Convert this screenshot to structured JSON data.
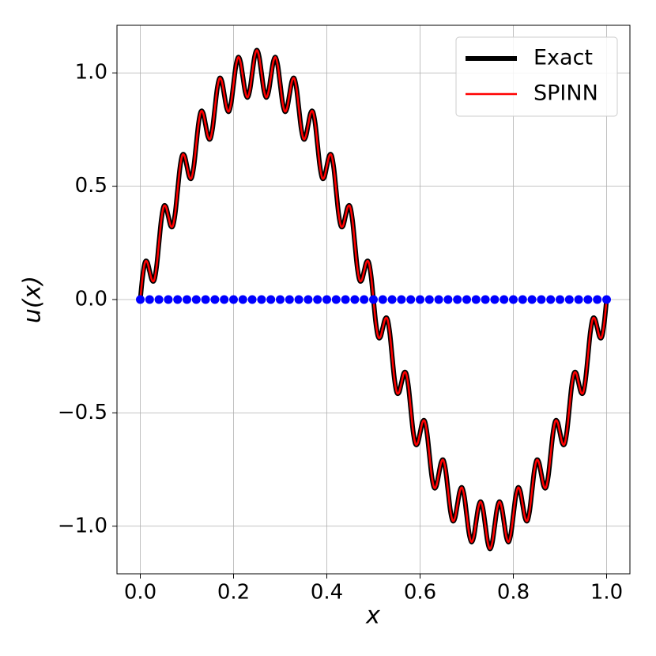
{
  "chart_data": {
    "type": "line",
    "xlabel": "x",
    "ylabel": "u(x)",
    "xlim": [
      -0.05,
      1.05
    ],
    "ylim": [
      -1.21,
      1.21
    ],
    "xticks": [
      {
        "value": 0,
        "label": "0.0"
      },
      {
        "value": 0.2,
        "label": "0.2"
      },
      {
        "value": 0.4,
        "label": "0.4"
      },
      {
        "value": 0.6,
        "label": "0.6"
      },
      {
        "value": 0.8,
        "label": "0.8"
      },
      {
        "value": 1,
        "label": "1.0"
      }
    ],
    "yticks": [
      {
        "value": -1,
        "label": "−1.0"
      },
      {
        "value": -0.5,
        "label": "−0.5"
      },
      {
        "value": 0,
        "label": "0.0"
      },
      {
        "value": 0.5,
        "label": "0.5"
      },
      {
        "value": 1,
        "label": "1.0"
      }
    ],
    "grid": true,
    "legend": "upper-right",
    "x": [
      0,
      0.005,
      0.01,
      0.015,
      0.02,
      0.025,
      0.03,
      0.035,
      0.04,
      0.045,
      0.05,
      0.055,
      0.06,
      0.065,
      0.07,
      0.075,
      0.08,
      0.085,
      0.09,
      0.095,
      0.1,
      0.105,
      0.11,
      0.115,
      0.12,
      0.125,
      0.13,
      0.135,
      0.14,
      0.145,
      0.15,
      0.155,
      0.16,
      0.165,
      0.17,
      0.175,
      0.18,
      0.185,
      0.19,
      0.195,
      0.2,
      0.205,
      0.21,
      0.215,
      0.22,
      0.225,
      0.23,
      0.235,
      0.24,
      0.245,
      0.25,
      0.255,
      0.26,
      0.265,
      0.27,
      0.275,
      0.28,
      0.285,
      0.29,
      0.295,
      0.3,
      0.305,
      0.31,
      0.315,
      0.32,
      0.325,
      0.33,
      0.335,
      0.34,
      0.345,
      0.35,
      0.355,
      0.36,
      0.365,
      0.37,
      0.375,
      0.38,
      0.385,
      0.39,
      0.395,
      0.4,
      0.405,
      0.41,
      0.415,
      0.42,
      0.425,
      0.43,
      0.435,
      0.44,
      0.445,
      0.45,
      0.455,
      0.46,
      0.465,
      0.47,
      0.475,
      0.48,
      0.485,
      0.49,
      0.495,
      0.5,
      0.505,
      0.51,
      0.515,
      0.52,
      0.525,
      0.53,
      0.535,
      0.54,
      0.545,
      0.55,
      0.555,
      0.56,
      0.565,
      0.57,
      0.575,
      0.58,
      0.585,
      0.59,
      0.595,
      0.6,
      0.605,
      0.61,
      0.615,
      0.62,
      0.625,
      0.63,
      0.635,
      0.64,
      0.645,
      0.65,
      0.655,
      0.66,
      0.665,
      0.67,
      0.675,
      0.68,
      0.685,
      0.69,
      0.695,
      0.7,
      0.705,
      0.71,
      0.715,
      0.72,
      0.725,
      0.73,
      0.735,
      0.74,
      0.745,
      0.75,
      0.755,
      0.76,
      0.765,
      0.77,
      0.775,
      0.78,
      0.785,
      0.79,
      0.795,
      0.8,
      0.805,
      0.81,
      0.815,
      0.82,
      0.825,
      0.83,
      0.835,
      0.84,
      0.845,
      0.85,
      0.855,
      0.86,
      0.865,
      0.87,
      0.875,
      0.88,
      0.885,
      0.89,
      0.895,
      0.9,
      0.905,
      0.91,
      0.915,
      0.92,
      0.925,
      0.93,
      0.935,
      0.94,
      0.945,
      0.95,
      0.955,
      0.96,
      0.965,
      0.97,
      0.975,
      0.98,
      0.985,
      0.99,
      0.995,
      1
    ],
    "series": [
      {
        "name": "Exact",
        "color": "#000000",
        "width": 6,
        "values": [
          0,
          0.102,
          0.163,
          0.165,
          0.125,
          0.086,
          0.087,
          0.147,
          0.249,
          0.35,
          0.409,
          0.409,
          0.368,
          0.326,
          0.326,
          0.383,
          0.482,
          0.58,
          0.636,
          0.633,
          0.588,
          0.542,
          0.537,
          0.591,
          0.685,
          0.778,
          0.829,
          0.821,
          0.771,
          0.72,
          0.709,
          0.756,
          0.844,
          0.931,
          0.976,
          0.962,
          0.905,
          0.847,
          0.83,
          0.87,
          0.951,
          1.031,
          1.069,
          1.047,
          0.982,
          0.917,
          0.892,
          0.925,
          0.998,
          1.07,
          1.1,
          1.07,
          0.998,
          0.925,
          0.892,
          0.917,
          0.982,
          1.047,
          1.069,
          1.031,
          0.951,
          0.87,
          0.83,
          0.847,
          0.905,
          0.962,
          0.976,
          0.931,
          0.844,
          0.756,
          0.709,
          0.72,
          0.771,
          0.821,
          0.829,
          0.778,
          0.685,
          0.591,
          0.537,
          0.542,
          0.588,
          0.633,
          0.636,
          0.58,
          0.482,
          0.383,
          0.326,
          0.326,
          0.368,
          0.409,
          0.409,
          0.35,
          0.249,
          0.147,
          0.087,
          0.086,
          0.125,
          0.165,
          0.163,
          0.102,
          0,
          -0.102,
          -0.163,
          -0.165,
          -0.125,
          -0.086,
          -0.087,
          -0.147,
          -0.249,
          -0.35,
          -0.409,
          -0.409,
          -0.368,
          -0.326,
          -0.326,
          -0.383,
          -0.482,
          -0.58,
          -0.636,
          -0.633,
          -0.588,
          -0.542,
          -0.537,
          -0.591,
          -0.685,
          -0.778,
          -0.829,
          -0.821,
          -0.771,
          -0.72,
          -0.709,
          -0.756,
          -0.844,
          -0.931,
          -0.976,
          -0.962,
          -0.905,
          -0.847,
          -0.83,
          -0.87,
          -0.951,
          -1.031,
          -1.069,
          -1.047,
          -0.982,
          -0.917,
          -0.892,
          -0.925,
          -0.998,
          -1.07,
          -1.1,
          -1.07,
          -0.998,
          -0.925,
          -0.892,
          -0.917,
          -0.982,
          -1.047,
          -1.069,
          -1.031,
          -0.951,
          -0.87,
          -0.83,
          -0.847,
          -0.905,
          -0.962,
          -0.976,
          -0.931,
          -0.844,
          -0.756,
          -0.709,
          -0.72,
          -0.771,
          -0.821,
          -0.829,
          -0.778,
          -0.685,
          -0.591,
          -0.537,
          -0.542,
          -0.588,
          -0.633,
          -0.636,
          -0.58,
          -0.482,
          -0.383,
          -0.326,
          -0.326,
          -0.368,
          -0.409,
          -0.409,
          -0.35,
          -0.249,
          -0.147,
          -0.087,
          -0.086,
          -0.125,
          -0.165,
          -0.163,
          -0.102,
          0
        ]
      },
      {
        "name": "SPINN",
        "color": "#ff0000",
        "width": 2.5,
        "values": [
          0,
          0.102,
          0.163,
          0.165,
          0.125,
          0.086,
          0.087,
          0.147,
          0.249,
          0.35,
          0.409,
          0.409,
          0.368,
          0.326,
          0.326,
          0.383,
          0.482,
          0.58,
          0.636,
          0.633,
          0.588,
          0.542,
          0.537,
          0.591,
          0.685,
          0.778,
          0.829,
          0.821,
          0.771,
          0.72,
          0.709,
          0.756,
          0.844,
          0.931,
          0.976,
          0.962,
          0.905,
          0.847,
          0.83,
          0.87,
          0.951,
          1.031,
          1.069,
          1.047,
          0.982,
          0.917,
          0.892,
          0.925,
          0.998,
          1.07,
          1.1,
          1.07,
          0.998,
          0.925,
          0.892,
          0.917,
          0.982,
          1.047,
          1.069,
          1.031,
          0.951,
          0.87,
          0.83,
          0.847,
          0.905,
          0.962,
          0.976,
          0.931,
          0.844,
          0.756,
          0.709,
          0.72,
          0.771,
          0.821,
          0.829,
          0.778,
          0.685,
          0.591,
          0.537,
          0.542,
          0.588,
          0.633,
          0.636,
          0.58,
          0.482,
          0.383,
          0.326,
          0.326,
          0.368,
          0.409,
          0.409,
          0.35,
          0.249,
          0.147,
          0.087,
          0.086,
          0.125,
          0.165,
          0.163,
          0.102,
          0,
          -0.102,
          -0.163,
          -0.165,
          -0.125,
          -0.086,
          -0.087,
          -0.147,
          -0.249,
          -0.35,
          -0.409,
          -0.409,
          -0.368,
          -0.326,
          -0.326,
          -0.383,
          -0.482,
          -0.58,
          -0.636,
          -0.633,
          -0.588,
          -0.542,
          -0.537,
          -0.591,
          -0.685,
          -0.778,
          -0.829,
          -0.821,
          -0.771,
          -0.72,
          -0.709,
          -0.756,
          -0.844,
          -0.931,
          -0.976,
          -0.962,
          -0.905,
          -0.847,
          -0.83,
          -0.87,
          -0.951,
          -1.031,
          -1.069,
          -1.047,
          -0.982,
          -0.917,
          -0.892,
          -0.925,
          -0.998,
          -1.07,
          -1.1,
          -1.07,
          -0.998,
          -0.925,
          -0.892,
          -0.917,
          -0.982,
          -1.047,
          -1.069,
          -1.031,
          -0.951,
          -0.87,
          -0.83,
          -0.847,
          -0.905,
          -0.962,
          -0.976,
          -0.931,
          -0.844,
          -0.756,
          -0.709,
          -0.72,
          -0.771,
          -0.821,
          -0.829,
          -0.778,
          -0.685,
          -0.591,
          -0.537,
          -0.542,
          -0.588,
          -0.633,
          -0.636,
          -0.58,
          -0.482,
          -0.383,
          -0.326,
          -0.326,
          -0.368,
          -0.409,
          -0.409,
          -0.35,
          -0.249,
          -0.147,
          -0.087,
          -0.086,
          -0.125,
          -0.165,
          -0.163,
          -0.102,
          0
        ]
      },
      {
        "color": "#0000ff",
        "mode": "markers",
        "x": [
          0,
          0.02,
          0.04,
          0.06,
          0.08,
          0.1,
          0.12,
          0.14,
          0.16,
          0.18,
          0.2,
          0.22,
          0.24,
          0.26,
          0.28,
          0.3,
          0.32,
          0.34,
          0.36,
          0.38,
          0.4,
          0.42,
          0.44,
          0.46,
          0.48,
          0.5,
          0.52,
          0.54,
          0.56,
          0.58,
          0.6,
          0.62,
          0.64,
          0.66,
          0.68,
          0.7,
          0.72,
          0.74,
          0.76,
          0.78,
          0.8,
          0.82,
          0.84,
          0.86,
          0.88,
          0.9,
          0.92,
          0.94,
          0.96,
          0.98,
          1
        ],
        "values": [
          0,
          0,
          0,
          0,
          0,
          0,
          0,
          0,
          0,
          0,
          0,
          0,
          0,
          0,
          0,
          0,
          0,
          0,
          0,
          0,
          0,
          0,
          0,
          0,
          0,
          0,
          0,
          0,
          0,
          0,
          0,
          0,
          0,
          0,
          0,
          0,
          0,
          0,
          0,
          0,
          0,
          0,
          0,
          0,
          0,
          0,
          0,
          0,
          0,
          0,
          0
        ]
      }
    ]
  }
}
